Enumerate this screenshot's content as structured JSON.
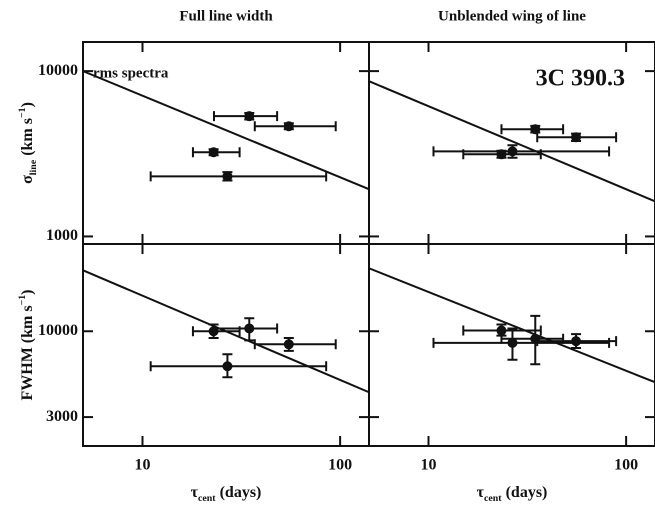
{
  "chart_data": [
    {
      "type": "scatter",
      "title": "Full line width",
      "ylabel": [
        {
          "text": "σ"
        },
        {
          "text": "line",
          "sub": true
        },
        {
          "text": " (km s"
        },
        {
          "text": "−1",
          "sup": true
        },
        {
          "text": ")"
        }
      ],
      "annotation": "rms spectra",
      "annotation_corner": "upper left",
      "log": true,
      "xlim": [
        5,
        140
      ],
      "ylim": [
        900,
        15000
      ],
      "xticks": [
        10,
        100
      ],
      "yticks": [
        1000,
        10000
      ],
      "fit": {
        "x": [
          5,
          140
        ],
        "y": [
          10000,
          1930
        ]
      },
      "points": {
        "color": "#111111",
        "x": [
          34.7,
          55,
          22.9,
          26.9
        ],
        "values": [
          5340,
          4640,
          3230,
          2310
        ],
        "x_lo": [
          23,
          37,
          18,
          11
        ],
        "x_hi": [
          48,
          95,
          31,
          85
        ],
        "y_lo": [
          5100,
          4450,
          3100,
          2180
        ],
        "y_hi": [
          5580,
          4840,
          3370,
          2450
        ]
      }
    },
    {
      "type": "scatter",
      "title": "Unblended wing of line",
      "annotation": "3C 390.3",
      "annotation_corner": "upper right",
      "log": true,
      "xlim": [
        5,
        140
      ],
      "ylim": [
        900,
        15000
      ],
      "xticks": [
        10,
        100
      ],
      "yticks": [
        1000,
        10000
      ],
      "fit": {
        "x": [
          5,
          140
        ],
        "y": [
          8690,
          1630
        ]
      },
      "points": {
        "color": "#111111",
        "x": [
          34.7,
          55.8,
          26.6,
          23.4
        ],
        "values": [
          4450,
          3980,
          3270,
          3140
        ],
        "x_lo": [
          23.4,
          35.5,
          10.6,
          15
        ],
        "x_hi": [
          48,
          89,
          82,
          37
        ],
        "y_lo": [
          4250,
          3780,
          2990,
          2990
        ],
        "y_hi": [
          4660,
          4190,
          3560,
          3300
        ]
      }
    },
    {
      "type": "scatter",
      "ylabel": [
        {
          "text": "FWHM (km s"
        },
        {
          "text": "−1",
          "sup": true
        },
        {
          "text": ")"
        }
      ],
      "xlabel": [
        {
          "text": "τ"
        },
        {
          "text": "cent",
          "sub": true
        },
        {
          "text": " (days)"
        }
      ],
      "log": true,
      "xlim": [
        5,
        140
      ],
      "ylim": [
        2000,
        34000
      ],
      "xticks": [
        10,
        100
      ],
      "yticks": [
        3000,
        10000
      ],
      "fit": {
        "x": [
          5,
          140
        ],
        "y": [
          23500,
          4250
        ]
      },
      "points": {
        "color": "#111111",
        "x": [
          34.7,
          55,
          22.9,
          26.9
        ],
        "values": [
          10400,
          8330,
          10000,
          6120
        ],
        "x_lo": [
          23,
          37,
          18,
          11
        ],
        "x_hi": [
          48,
          95,
          31,
          85
        ],
        "y_lo": [
          8800,
          7600,
          9100,
          5250
        ],
        "y_hi": [
          12000,
          9100,
          11000,
          7240
        ]
      }
    },
    {
      "type": "scatter",
      "xlabel": [
        {
          "text": "τ"
        },
        {
          "text": "cent",
          "sub": true
        },
        {
          "text": " (days)"
        }
      ],
      "log": true,
      "xlim": [
        5,
        140
      ],
      "ylim": [
        2000,
        34000
      ],
      "xticks": [
        10,
        100
      ],
      "yticks": [
        3000,
        10000
      ],
      "fit": {
        "x": [
          5,
          140
        ],
        "y": [
          24200,
          4890
        ]
      },
      "points": {
        "color": "#111111",
        "x": [
          34.7,
          55.8,
          26.6,
          23.4
        ],
        "values": [
          9000,
          8700,
          8500,
          10100
        ],
        "x_lo": [
          23.4,
          35.5,
          10.6,
          15
        ],
        "x_hi": [
          48,
          89,
          82,
          37
        ],
        "y_lo": [
          6300,
          7900,
          6700,
          9400
        ],
        "y_hi": [
          12400,
          9600,
          10400,
          11000
        ]
      }
    }
  ]
}
